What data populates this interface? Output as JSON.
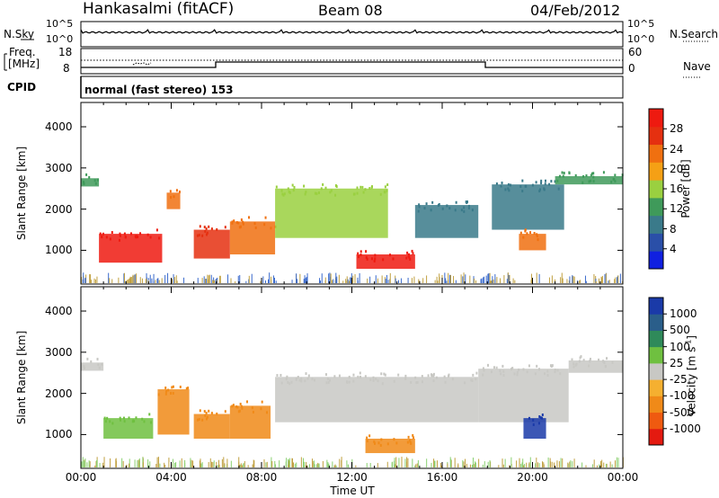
{
  "header": {
    "radar": "Hankasalmi (fitACF)",
    "beam": "Beam 08",
    "date": "04/Feb/2012"
  },
  "noise_panel": {
    "left_label": "N.Sky",
    "right_label": "N.Search",
    "left_ticks": [
      "10^5",
      "10^0"
    ],
    "right_ticks": [
      "10^5",
      "10^0"
    ]
  },
  "freq_panel": {
    "left_label_1": "Freq.",
    "left_label_2": "[MHz]",
    "left_ticks": [
      "18",
      "8"
    ],
    "right_label": "Nave",
    "right_ticks": [
      "60",
      "0"
    ]
  },
  "cpid": {
    "label": "CPID",
    "mode": "normal (fast stereo) 153"
  },
  "axes": {
    "y_label": "Slant Range [km]",
    "y_ticks": [
      "4000",
      "3000",
      "2000",
      "1000"
    ],
    "x_label": "Time UT",
    "x_ticks": [
      "00:00",
      "04:00",
      "08:00",
      "12:00",
      "16:00",
      "20:00",
      "00:00"
    ]
  },
  "power_colorbar": {
    "label": "Power [dB]",
    "ticks": [
      "28",
      "24",
      "20",
      "16",
      "12",
      "8",
      "4"
    ],
    "colors": [
      "#1020e0",
      "#2a4fa8",
      "#3a7a8a",
      "#3f9a5a",
      "#9ad040",
      "#f5a015",
      "#f07010",
      "#e53010",
      "#ee1a10"
    ]
  },
  "velocity_colorbar": {
    "label": "Velocity [m s",
    "label_sup": "-1",
    "label_end": "]",
    "ticks": [
      "1000",
      "500",
      "100",
      "25",
      "-25",
      "-100",
      "-500",
      "-1000"
    ],
    "colors": [
      "#1a3aa8",
      "#2a5e8a",
      "#2f8a5a",
      "#6fc040",
      "#c8c8c4",
      "#f5b030",
      "#f08a18",
      "#ef5a10",
      "#e41a10"
    ]
  },
  "chart_data": [
    {
      "type": "heatmap",
      "title": "Power [dB]",
      "xlabel": "Time UT",
      "ylabel": "Slant Range [km]",
      "xlim": [
        "00:00",
        "24:00"
      ],
      "ylim": [
        180,
        4590
      ],
      "colorscale_range": [
        0,
        30
      ],
      "regions": [
        {
          "t_start": 0.0,
          "t_end": 0.8,
          "r_min": 2550,
          "r_max": 2750,
          "value": 10
        },
        {
          "t_start": 0.8,
          "t_end": 3.6,
          "r_min": 700,
          "r_max": 1400,
          "value": 27
        },
        {
          "t_start": 3.8,
          "t_end": 4.4,
          "r_min": 2000,
          "r_max": 2400,
          "value": 22
        },
        {
          "t_start": 5.0,
          "t_end": 6.6,
          "r_min": 800,
          "r_max": 1500,
          "value": 26
        },
        {
          "t_start": 6.6,
          "t_end": 8.6,
          "r_min": 900,
          "r_max": 1700,
          "value": 20
        },
        {
          "t_start": 8.6,
          "t_end": 13.6,
          "r_min": 1300,
          "r_max": 2500,
          "value": 14
        },
        {
          "t_start": 12.2,
          "t_end": 14.8,
          "r_min": 550,
          "r_max": 900,
          "value": 28
        },
        {
          "t_start": 14.8,
          "t_end": 17.6,
          "r_min": 1300,
          "r_max": 2100,
          "value": 9
        },
        {
          "t_start": 18.2,
          "t_end": 21.4,
          "r_min": 1500,
          "r_max": 2600,
          "value": 9
        },
        {
          "t_start": 19.4,
          "t_end": 20.6,
          "r_min": 1000,
          "r_max": 1400,
          "value": 20
        },
        {
          "t_start": 21.0,
          "t_end": 24.0,
          "r_min": 2600,
          "r_max": 2800,
          "value": 10
        }
      ]
    },
    {
      "type": "heatmap",
      "title": "Velocity [m s-1]",
      "xlabel": "Time UT",
      "ylabel": "Slant Range [km]",
      "xlim": [
        "00:00",
        "24:00"
      ],
      "ylim": [
        180,
        4590
      ],
      "colorscale_ticks": [
        1000,
        500,
        100,
        25,
        -25,
        -100,
        -500,
        -1000
      ],
      "regions": [
        {
          "t_start": 0.0,
          "t_end": 1.0,
          "r_min": 2550,
          "r_max": 2750,
          "value": 0
        },
        {
          "t_start": 1.0,
          "t_end": 3.2,
          "r_min": 900,
          "r_max": 1400,
          "value": 60
        },
        {
          "t_start": 3.4,
          "t_end": 4.8,
          "r_min": 1000,
          "r_max": 2100,
          "value": -150
        },
        {
          "t_start": 5.0,
          "t_end": 6.6,
          "r_min": 900,
          "r_max": 1500,
          "value": -200
        },
        {
          "t_start": 6.6,
          "t_end": 8.4,
          "r_min": 900,
          "r_max": 1700,
          "value": -300
        },
        {
          "t_start": 8.6,
          "t_end": 17.6,
          "r_min": 1300,
          "r_max": 2400,
          "value": 0
        },
        {
          "t_start": 12.6,
          "t_end": 14.8,
          "r_min": 550,
          "r_max": 900,
          "value": -150
        },
        {
          "t_start": 17.6,
          "t_end": 21.6,
          "r_min": 1300,
          "r_max": 2600,
          "value": 0
        },
        {
          "t_start": 19.6,
          "t_end": 20.6,
          "r_min": 900,
          "r_max": 1400,
          "value": 600
        },
        {
          "t_start": 21.6,
          "t_end": 24.0,
          "r_min": 2500,
          "r_max": 2800,
          "value": 0
        }
      ]
    }
  ]
}
